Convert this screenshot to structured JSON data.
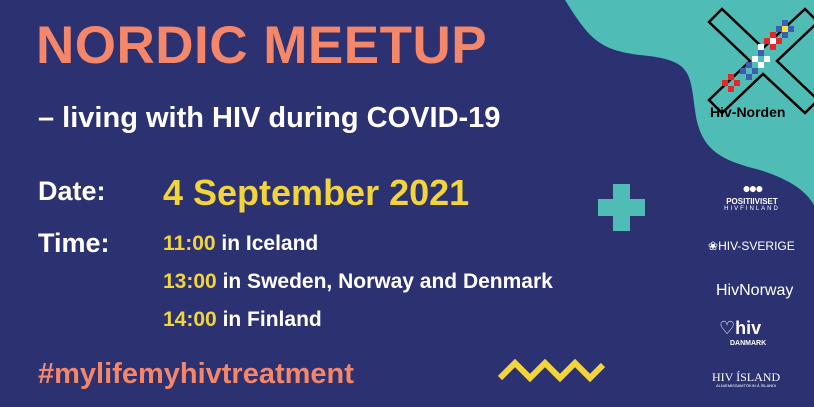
{
  "title": "NORDIC MEETUP",
  "subtitle": "– living with HIV during COVID-19",
  "date": {
    "label": "Date:",
    "value": "4 September 2021"
  },
  "time": {
    "label": "Time:",
    "entries": [
      {
        "time": "11:00",
        "place": "in Iceland"
      },
      {
        "time": "13:00",
        "place": "in Sweden, Norway and Denmark"
      },
      {
        "time": "14:00",
        "place": "in Finland"
      }
    ]
  },
  "hashtag": "#mylifemyhivtreatment",
  "organizer": "Hiv-Norden",
  "partners": [
    {
      "name": "POSITIIVISET",
      "sub": "HIVFINLAND"
    },
    {
      "name": "HIV-SVERIGE"
    },
    {
      "name": "HivNorway"
    },
    {
      "name": "hiv",
      "sub": "DANMARK"
    },
    {
      "name": "HIV ÍSLAND",
      "sub": "ALNÆMISSAMTÖKIN Á ÍSLANDI"
    }
  ],
  "colors": {
    "background": "#2c3172",
    "accent_salmon": "#f4866a",
    "accent_yellow": "#f2d43b",
    "accent_teal": "#4fbdb6"
  }
}
